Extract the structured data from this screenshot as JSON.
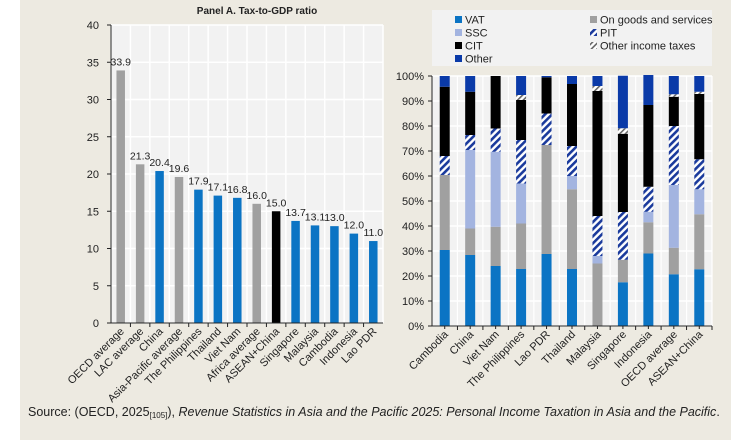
{
  "source": {
    "prefix": "Source: (OECD, 2025",
    "ref": "[105]",
    "middle": "), ",
    "title": "Revenue Statistics in Asia and the Pacific 2025: Personal Income Taxation in Asia and the Pacific",
    "suffix": "."
  },
  "chart_data": [
    {
      "type": "bar",
      "title": "Panel A. Tax-to-GDP ratio",
      "xlabel": "",
      "ylabel": "",
      "ylim": [
        0,
        40
      ],
      "yticks": [
        0,
        5,
        10,
        15,
        20,
        25,
        30,
        35,
        40
      ],
      "grid": true,
      "categories": [
        "OECD average",
        "LAC average",
        "China",
        "Asia-Pacific average",
        "The Philippines",
        "Thailand",
        "Viet Nam",
        "Africa average",
        "ASEAN+China",
        "Singapore",
        "Malaysia",
        "Cambodia",
        "Indonesia",
        "Lao PDR"
      ],
      "values": [
        33.9,
        21.3,
        20.4,
        19.6,
        17.9,
        17.1,
        16.8,
        16.0,
        15.0,
        13.7,
        13.1,
        13.0,
        12.0,
        11.0
      ],
      "data_labels": [
        "33.9",
        "21.3",
        "20.4",
        "19.6",
        "17.9",
        "17.1",
        "16.8",
        "16.0",
        "15.0",
        "13.7",
        "13.1",
        "13.0",
        "12.0",
        "11.0"
      ],
      "bar_colors": [
        "#a0a0a0",
        "#a0a0a0",
        "#0b74c4",
        "#a0a0a0",
        "#0b74c4",
        "#0b74c4",
        "#0b74c4",
        "#a0a0a0",
        "#000000",
        "#0b74c4",
        "#0b74c4",
        "#0b74c4",
        "#0b74c4",
        "#0b74c4"
      ]
    },
    {
      "type": "bar",
      "stacked": true,
      "title": "",
      "xlabel": "",
      "ylabel": "",
      "ylim": [
        0,
        100
      ],
      "yticks": [
        "0%",
        "10%",
        "20%",
        "30%",
        "40%",
        "50%",
        "60%",
        "70%",
        "80%",
        "90%",
        "100%"
      ],
      "grid": true,
      "legend_position": "top",
      "categories": [
        "Cambodia",
        "China",
        "Viet Nam",
        "The Philippines",
        "Lao PDR",
        "Thailand",
        "Malaysia",
        "Singapore",
        "Indonesia",
        "OECD average",
        "ASEAN+China"
      ],
      "series": [
        {
          "name": "VAT",
          "color": "#0b74c4",
          "pattern": "solid",
          "values": [
            30.4,
            28.4,
            24.0,
            22.8,
            28.8,
            22.8,
            0.0,
            17.5,
            29.0,
            20.7,
            22.7
          ]
        },
        {
          "name": "On goods and services",
          "color": "#a0a0a0",
          "pattern": "solid",
          "values": [
            30.0,
            10.6,
            15.7,
            18.2,
            43.6,
            31.9,
            25.0,
            9.0,
            12.5,
            10.6,
            22.0
          ]
        },
        {
          "name": "SSC",
          "color": "#a3b4e0",
          "pattern": "solid",
          "values": [
            0.0,
            31.4,
            30.0,
            16.0,
            0.0,
            5.3,
            3.0,
            0.0,
            4.2,
            25.1,
            10.0
          ]
        },
        {
          "name": "PIT",
          "color": "#1a3a9c",
          "pattern": "stripes",
          "values": [
            7.6,
            6.0,
            9.3,
            17.4,
            12.6,
            12.0,
            16.0,
            19.1,
            10.0,
            23.6,
            12.0
          ]
        },
        {
          "name": "CIT",
          "color": "#000000",
          "pattern": "solid",
          "values": [
            27.7,
            17.3,
            21.0,
            16.0,
            14.5,
            24.8,
            50.0,
            31.3,
            32.7,
            11.7,
            26.1
          ]
        },
        {
          "name": "Other income taxes",
          "color": "#ffffff",
          "pattern": "stripes-gray",
          "values": [
            0.0,
            0.0,
            0.0,
            2.0,
            0.0,
            0.0,
            2.0,
            2.2,
            0.0,
            1.0,
            0.9
          ]
        },
        {
          "name": "Other",
          "color": "#0a3aa8",
          "pattern": "solid",
          "values": [
            4.3,
            6.3,
            0.0,
            7.6,
            0.5,
            3.2,
            4.0,
            21.0,
            12.0,
            7.3,
            6.3
          ]
        }
      ],
      "legend": [
        {
          "name": "VAT",
          "column": 1
        },
        {
          "name": "SSC",
          "column": 1
        },
        {
          "name": "CIT",
          "column": 1
        },
        {
          "name": "Other",
          "column": 1
        },
        {
          "name": "On goods and services",
          "column": 2
        },
        {
          "name": "PIT",
          "column": 2
        },
        {
          "name": "Other income taxes",
          "column": 2
        }
      ]
    }
  ]
}
